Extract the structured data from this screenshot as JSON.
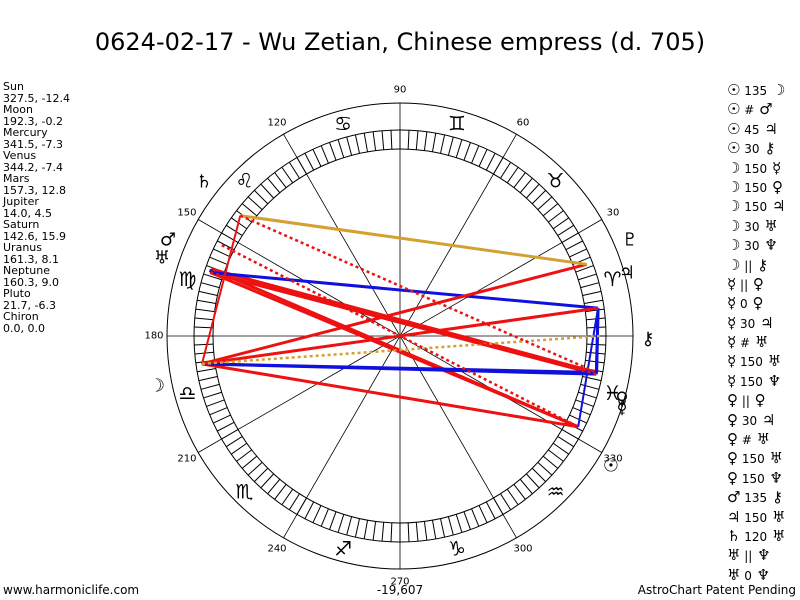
{
  "title": "0624-02-17 - Wu Zetian, Chinese empress (d. 705)",
  "positions": [
    {
      "name": "Sun",
      "coords": "327.5, -12.4"
    },
    {
      "name": "Moon",
      "coords": "192.3, -0.2"
    },
    {
      "name": "Mercury",
      "coords": "341.5, -7.3"
    },
    {
      "name": "Venus",
      "coords": "344.2, -7.4"
    },
    {
      "name": "Mars",
      "coords": "157.3, 12.8"
    },
    {
      "name": "Jupiter",
      "coords": "14.0, 4.5"
    },
    {
      "name": "Saturn",
      "coords": "142.6, 15.9"
    },
    {
      "name": "Uranus",
      "coords": "161.3, 8.1"
    },
    {
      "name": "Neptune",
      "coords": "160.3, 9.0"
    },
    {
      "name": "Pluto",
      "coords": "21.7, -6.3"
    },
    {
      "name": "Chiron",
      "coords": "0.0, 0.0"
    }
  ],
  "aspects": [
    {
      "p1": "☉",
      "asp": "135",
      "p2": "☽"
    },
    {
      "p1": "☉",
      "asp": "#",
      "p2": "♂"
    },
    {
      "p1": "☉",
      "asp": "45",
      "p2": "♃"
    },
    {
      "p1": "☉",
      "asp": "30",
      "p2": "⚷"
    },
    {
      "p1": "☽",
      "asp": "150",
      "p2": "☿"
    },
    {
      "p1": "☽",
      "asp": "150",
      "p2": "♀"
    },
    {
      "p1": "☽",
      "asp": "150",
      "p2": "♃"
    },
    {
      "p1": "☽",
      "asp": "30",
      "p2": "♅"
    },
    {
      "p1": "☽",
      "asp": "30",
      "p2": "♆"
    },
    {
      "p1": "☽",
      "asp": "||",
      "p2": "⚷"
    },
    {
      "p1": "☿",
      "asp": "||",
      "p2": "♀"
    },
    {
      "p1": "☿",
      "asp": "0",
      "p2": "♀"
    },
    {
      "p1": "☿",
      "asp": "30",
      "p2": "♃"
    },
    {
      "p1": "☿",
      "asp": "#",
      "p2": "♅"
    },
    {
      "p1": "☿",
      "asp": "150",
      "p2": "♅"
    },
    {
      "p1": "☿",
      "asp": "150",
      "p2": "♆"
    },
    {
      "p1": "♀",
      "asp": "||",
      "p2": "♀"
    },
    {
      "p1": "♀",
      "asp": "30",
      "p2": "♃"
    },
    {
      "p1": "♀",
      "asp": "#",
      "p2": "♅"
    },
    {
      "p1": "♀",
      "asp": "150",
      "p2": "♅"
    },
    {
      "p1": "♀",
      "asp": "150",
      "p2": "♆"
    },
    {
      "p1": "♂",
      "asp": "135",
      "p2": "⚷"
    },
    {
      "p1": "♃",
      "asp": "150",
      "p2": "♅"
    },
    {
      "p1": "♄",
      "asp": "120",
      "p2": "♅"
    },
    {
      "p1": "♅",
      "asp": "||",
      "p2": "♆"
    },
    {
      "p1": "♅",
      "asp": "0",
      "p2": "♆"
    }
  ],
  "wheel": {
    "degree_labels": [
      "30",
      "60",
      "90",
      "120",
      "150",
      "180",
      "210",
      "240",
      "270",
      "300",
      "330"
    ],
    "zodiac_glyphs": [
      "♈",
      "♉",
      "♊",
      "♋",
      "♌",
      "♍",
      "♎",
      "♏",
      "♐",
      "♑",
      "♒",
      "♓"
    ],
    "planet_glyphs": {
      "sun": "☉",
      "moon": "☽",
      "mercury": "☿",
      "venus": "♀",
      "mars": "♂",
      "jupiter": "♃",
      "saturn": "♄",
      "uranus": "♅",
      "neptune": "♆",
      "pluto": "♇",
      "chiron": "⚷"
    },
    "colors": {
      "red": "#ee1111",
      "blue": "#1111dd",
      "gold": "#d4a030"
    }
  },
  "footer": {
    "left": "www.harmoniclife.com",
    "center": "-19,607",
    "right": "AstroChart Patent Pending"
  }
}
